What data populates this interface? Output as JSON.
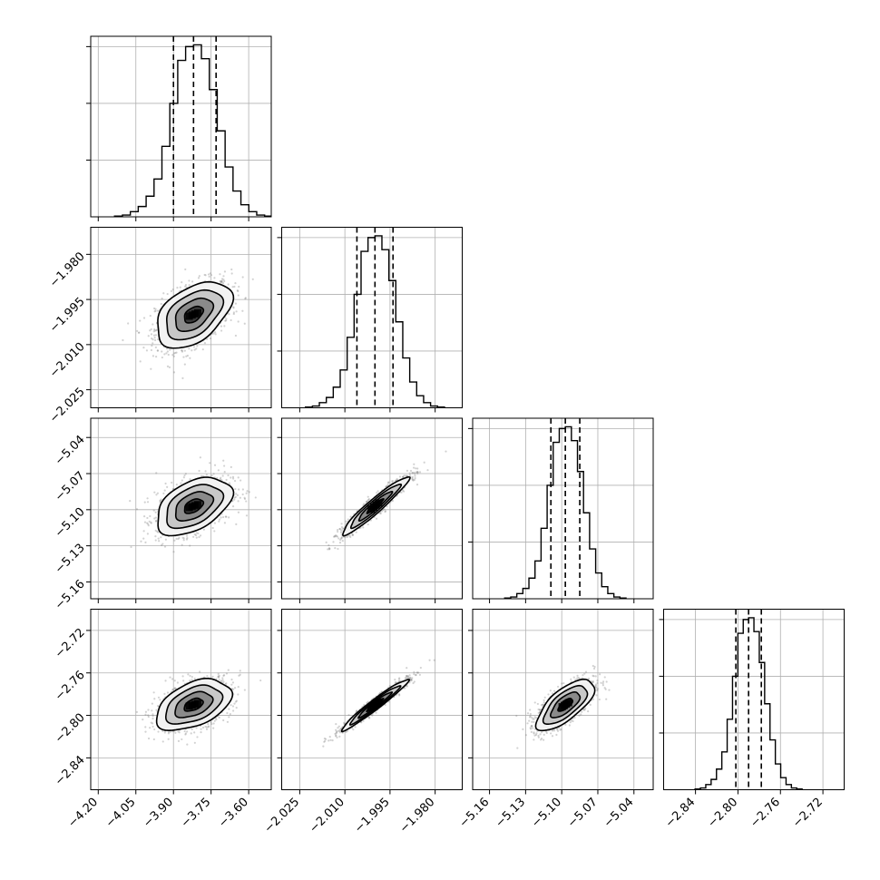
{
  "chart_data": {
    "type": "corner",
    "n_params": 4,
    "grid": true,
    "params": [
      {
        "range": [
          -4.23,
          -3.51
        ],
        "ticks": [
          "-4.20",
          "-4.05",
          "-3.90",
          "-3.75",
          "-3.60"
        ],
        "tick_values": [
          -4.2,
          -4.05,
          -3.9,
          -3.75,
          -3.6
        ],
        "quantiles": [
          -3.9,
          -3.82,
          -3.73
        ],
        "mean": -3.82,
        "std": 0.075
      },
      {
        "range": [
          -2.031,
          -1.971
        ],
        "ticks": [
          "-2.025",
          "-2.010",
          "-1.995",
          "-1.980"
        ],
        "tick_values": [
          -2.025,
          -2.01,
          -1.995,
          -1.98
        ],
        "quantiles": [
          -2.006,
          -2.0,
          -1.994
        ],
        "mean": -2.0,
        "std": 0.0055
      },
      {
        "range": [
          -5.174,
          -5.024
        ],
        "ticks": [
          "-5.16",
          "-5.13",
          "-5.10",
          "-5.07",
          "-5.04"
        ],
        "tick_values": [
          -5.16,
          -5.13,
          -5.1,
          -5.07,
          -5.04
        ],
        "quantiles": [
          -5.109,
          -5.097,
          -5.085
        ],
        "mean": -5.097,
        "std": 0.012
      },
      {
        "range": [
          -2.87,
          -2.7
        ],
        "ticks": [
          "-2.84",
          "-2.80",
          "-2.76",
          "-2.72"
        ],
        "tick_values": [
          -2.84,
          -2.8,
          -2.76,
          -2.72
        ],
        "quantiles": [
          -2.802,
          -2.79,
          -2.778
        ],
        "mean": -2.79,
        "std": 0.012
      }
    ],
    "correlations": [
      [
        1.0,
        0.45,
        0.45,
        0.45
      ],
      [
        0.45,
        1.0,
        0.95,
        0.97
      ],
      [
        0.45,
        0.95,
        1.0,
        0.7
      ],
      [
        0.45,
        0.97,
        0.7,
        1.0
      ]
    ],
    "histograms": [
      [
        0.004,
        0.01,
        0.03,
        0.06,
        0.12,
        0.22,
        0.41,
        0.66,
        0.91,
        0.99,
        1.0,
        0.92,
        0.74,
        0.5,
        0.29,
        0.15,
        0.07,
        0.03,
        0.01,
        0.004
      ],
      [
        0.004,
        0.01,
        0.03,
        0.06,
        0.12,
        0.22,
        0.41,
        0.66,
        0.91,
        0.99,
        1.0,
        0.92,
        0.74,
        0.5,
        0.29,
        0.15,
        0.07,
        0.03,
        0.01,
        0.004
      ],
      [
        0.004,
        0.01,
        0.03,
        0.06,
        0.12,
        0.22,
        0.41,
        0.66,
        0.91,
        0.99,
        1.0,
        0.92,
        0.74,
        0.5,
        0.29,
        0.15,
        0.07,
        0.03,
        0.01,
        0.004
      ],
      [
        0.004,
        0.01,
        0.03,
        0.06,
        0.12,
        0.22,
        0.41,
        0.66,
        0.91,
        0.99,
        1.0,
        0.92,
        0.74,
        0.5,
        0.29,
        0.15,
        0.07,
        0.03,
        0.01,
        0.004
      ]
    ],
    "contour_levels_sigma": [
      0.5,
      1.0,
      1.5,
      2.0
    ],
    "scatter_color": "#7f7f7f",
    "density_color": "#000000"
  }
}
